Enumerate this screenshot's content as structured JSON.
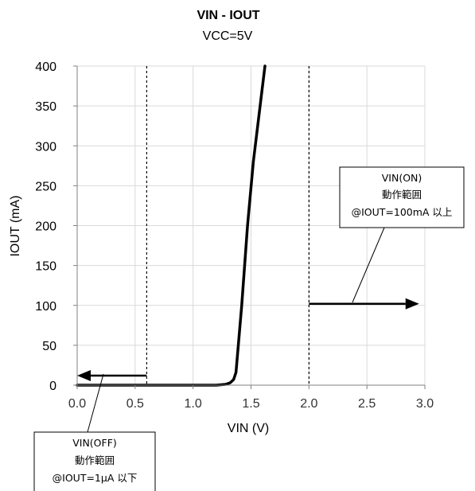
{
  "chart_data": {
    "type": "line",
    "title": "VIN - IOUT",
    "subtitle": "VCC=5V",
    "xlabel": "VIN (V)",
    "ylabel": "IOUT (mA)",
    "xlim": [
      0.0,
      3.0
    ],
    "ylim": [
      0,
      400
    ],
    "x_ticks": [
      "0.0",
      "0.5",
      "1.0",
      "1.5",
      "2.0",
      "2.5",
      "3.0"
    ],
    "y_ticks": [
      "0",
      "50",
      "100",
      "150",
      "200",
      "250",
      "300",
      "350",
      "400"
    ],
    "grid": true,
    "series": [
      {
        "x": [
          0.0,
          1.2,
          1.28,
          1.32,
          1.35,
          1.37,
          1.42,
          1.47,
          1.52,
          1.57,
          1.62
        ],
        "y": [
          0,
          0,
          1,
          3,
          7,
          16,
          100,
          200,
          280,
          340,
          400
        ]
      }
    ],
    "threshold_lines": [
      {
        "x": 0.6,
        "style": "dashed"
      },
      {
        "x": 2.0,
        "style": "dashed"
      }
    ],
    "arrows": [
      {
        "from": [
          0.6,
          12
        ],
        "to": [
          0.0,
          12
        ]
      },
      {
        "from": [
          2.0,
          102
        ],
        "to": [
          2.95,
          102
        ]
      }
    ],
    "annotations": [
      {
        "lines": [
          "VIN(ON)",
          "動作範囲",
          "@IOUT=100mA 以上"
        ]
      },
      {
        "lines": [
          "VIN(OFF)",
          "動作範囲",
          "@IOUT=1μA 以下"
        ]
      }
    ],
    "colors": {
      "line": "#000000",
      "grid": "#d9d9d9",
      "axis": "#808080"
    }
  }
}
